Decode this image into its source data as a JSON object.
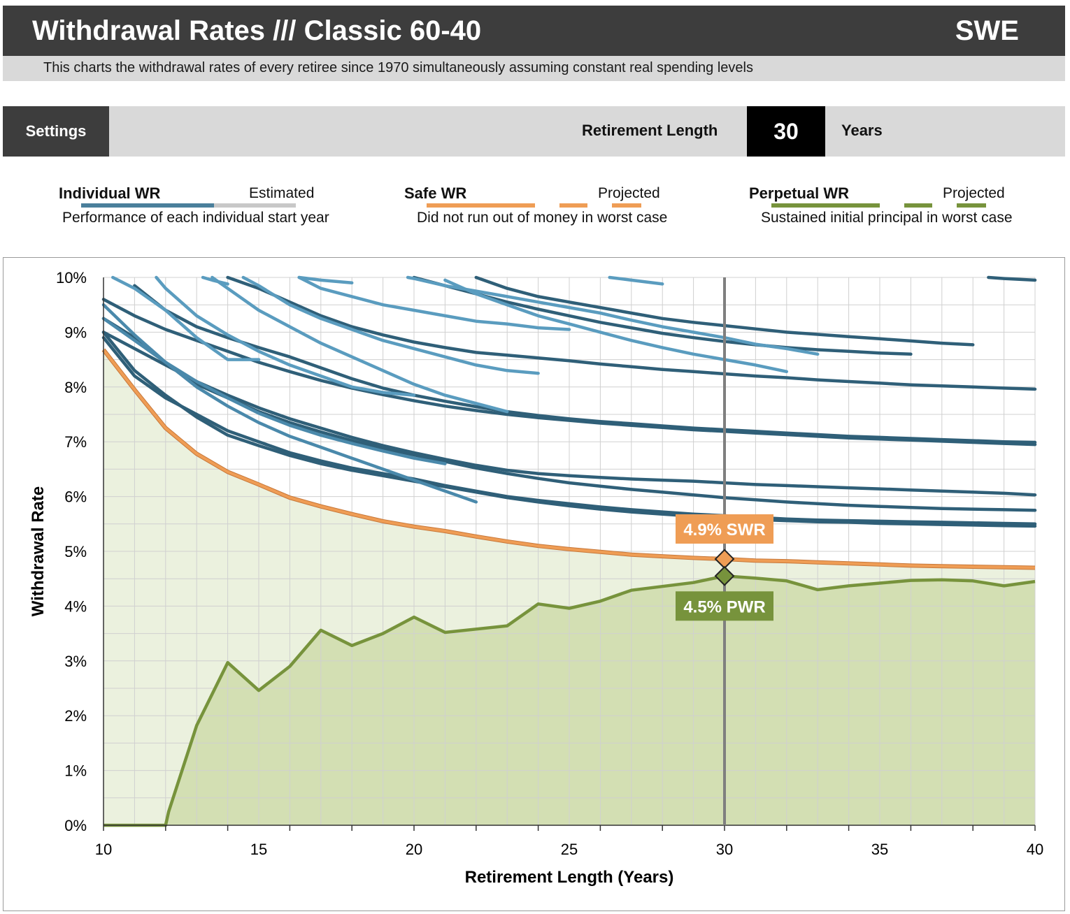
{
  "header": {
    "title": "Withdrawal Rates /// Classic 60-40",
    "country": "SWE",
    "subtitle": "This charts the withdrawal rates of every retiree since 1970 simultaneously assuming constant real spending levels"
  },
  "settings": {
    "button_label": "Settings",
    "retirement_length_label": "Retirement Length",
    "retirement_length_value": "30",
    "retirement_length_unit": "Years"
  },
  "legend": {
    "individual": {
      "title": "Individual WR",
      "extra": "Estimated",
      "desc": "Performance of each individual start year",
      "color": "#4a7f9b",
      "extra_color": "#c8c8c8"
    },
    "safe": {
      "title": "Safe WR",
      "extra": "Projected",
      "desc": "Did not run out of money in worst case",
      "color": "#ef9d55"
    },
    "perpetual": {
      "title": "Perpetual WR",
      "extra": "Projected",
      "desc": "Sustained initial principal in worst case",
      "color": "#77933c"
    }
  },
  "chart_data": {
    "type": "line",
    "xlabel": "Retirement Length (Years)",
    "ylabel": "Withdrawal Rate",
    "xlim": [
      10,
      40
    ],
    "ylim": [
      0,
      10
    ],
    "x_ticks": [
      10,
      15,
      20,
      25,
      30,
      35,
      40
    ],
    "y_ticks": [
      "0%",
      "1%",
      "2%",
      "3%",
      "4%",
      "5%",
      "6%",
      "7%",
      "8%",
      "9%",
      "10%"
    ],
    "selected_x": 30,
    "annotations": [
      {
        "label": "4.9% SWR",
        "x": 30,
        "y": 4.86,
        "color": "#ef9d55"
      },
      {
        "label": "4.5% PWR",
        "x": 30,
        "y": 4.55,
        "color": "#77933c"
      }
    ],
    "safe_wr": {
      "color": "#ef9d55",
      "x": [
        10,
        11,
        12,
        13,
        14,
        15,
        16,
        17,
        18,
        19,
        20,
        21,
        22,
        23,
        24,
        25,
        26,
        27,
        28,
        29,
        30,
        31,
        32,
        33,
        34,
        35,
        36,
        37,
        38,
        39,
        40
      ],
      "y": [
        8.68,
        7.95,
        7.25,
        6.78,
        6.45,
        6.22,
        5.98,
        5.82,
        5.68,
        5.55,
        5.45,
        5.37,
        5.27,
        5.18,
        5.1,
        5.04,
        4.99,
        4.94,
        4.91,
        4.88,
        4.86,
        4.83,
        4.82,
        4.8,
        4.78,
        4.76,
        4.74,
        4.73,
        4.72,
        4.71,
        4.7
      ]
    },
    "perpetual_wr": {
      "color": "#77933c",
      "x": [
        10,
        11,
        12,
        12.1,
        13,
        14,
        15,
        16,
        17,
        18,
        19,
        20,
        21,
        22,
        23,
        24,
        25,
        26,
        27,
        28,
        29,
        30,
        31,
        32,
        33,
        34,
        35,
        36,
        37,
        38,
        39,
        40
      ],
      "y": [
        0,
        0,
        0,
        0.25,
        1.82,
        2.97,
        2.46,
        2.9,
        3.56,
        3.28,
        3.5,
        3.8,
        3.52,
        3.58,
        3.64,
        4.04,
        3.96,
        4.09,
        4.29,
        4.36,
        4.43,
        4.55,
        4.51,
        4.46,
        4.3,
        4.37,
        4.42,
        4.47,
        4.48,
        4.46,
        4.37,
        4.45
      ]
    },
    "individual_series": [
      {
        "color": "#2f5f78",
        "x": [
          10,
          11,
          12,
          13,
          14,
          15,
          16,
          17,
          18,
          19,
          20,
          21,
          22,
          23,
          24,
          25,
          26,
          27,
          28,
          29,
          30,
          31,
          32,
          33,
          34,
          35,
          36,
          37,
          38,
          39,
          40
        ],
        "y": [
          9.0,
          8.3,
          7.85,
          7.45,
          7.12,
          6.93,
          6.75,
          6.6,
          6.48,
          6.38,
          6.28,
          6.18,
          6.08,
          5.98,
          5.9,
          5.83,
          5.77,
          5.72,
          5.68,
          5.64,
          5.6,
          5.58,
          5.56,
          5.54,
          5.53,
          5.51,
          5.5,
          5.49,
          5.48,
          5.47,
          5.46
        ]
      },
      {
        "color": "#2f5f78",
        "x": [
          10,
          11,
          12,
          13,
          14,
          15,
          16,
          17,
          18,
          19,
          20,
          21,
          22,
          23,
          24,
          25,
          26,
          27,
          28,
          29,
          30,
          31,
          32,
          33,
          34,
          35,
          36,
          37,
          38,
          39,
          40
        ],
        "y": [
          8.9,
          8.2,
          7.8,
          7.5,
          7.2,
          7.0,
          6.8,
          6.65,
          6.52,
          6.42,
          6.32,
          6.2,
          6.1,
          6.0,
          5.93,
          5.87,
          5.81,
          5.76,
          5.72,
          5.68,
          5.65,
          5.62,
          5.59,
          5.57,
          5.56,
          5.55,
          5.54,
          5.53,
          5.52,
          5.51,
          5.5
        ]
      },
      {
        "color": "#2f5f78",
        "x": [
          10,
          11,
          12,
          13,
          14,
          15,
          16,
          17,
          18,
          19,
          20,
          21,
          22,
          23,
          24,
          25,
          26,
          27,
          28,
          29,
          30,
          31,
          32,
          33,
          34,
          35,
          36,
          37,
          38,
          39,
          40
        ],
        "y": [
          9.25,
          8.9,
          8.45,
          8.05,
          7.8,
          7.55,
          7.35,
          7.18,
          7.02,
          6.88,
          6.76,
          6.64,
          6.52,
          6.42,
          6.33,
          6.25,
          6.19,
          6.13,
          6.08,
          6.03,
          5.98,
          5.94,
          5.9,
          5.87,
          5.84,
          5.82,
          5.8,
          5.78,
          5.77,
          5.76,
          5.75
        ]
      },
      {
        "color": "#2f5f78",
        "x": [
          10,
          11,
          12,
          13,
          14,
          15,
          16,
          17,
          18,
          19,
          20,
          21,
          22,
          23,
          24,
          25,
          26,
          27,
          28,
          29,
          30,
          31,
          32,
          33,
          34,
          35,
          36,
          37,
          38,
          39,
          40
        ],
        "y": [
          9.0,
          8.7,
          8.4,
          8.1,
          7.85,
          7.62,
          7.42,
          7.25,
          7.08,
          6.93,
          6.8,
          6.68,
          6.57,
          6.48,
          6.42,
          6.38,
          6.35,
          6.32,
          6.3,
          6.28,
          6.25,
          6.22,
          6.2,
          6.18,
          6.16,
          6.14,
          6.12,
          6.1,
          6.08,
          6.06,
          6.03
        ]
      },
      {
        "color": "#2f5f78",
        "x": [
          10,
          11,
          12,
          13,
          14,
          15,
          16,
          17,
          18,
          19,
          20,
          21,
          22,
          23,
          24,
          25,
          26,
          27,
          28,
          29,
          30,
          31,
          32,
          33,
          34,
          35,
          36,
          37,
          38,
          39,
          40
        ],
        "y": [
          9.6,
          9.3,
          9.05,
          8.85,
          8.65,
          8.45,
          8.28,
          8.12,
          7.98,
          7.86,
          7.75,
          7.65,
          7.57,
          7.5,
          7.44,
          7.39,
          7.34,
          7.3,
          7.26,
          7.22,
          7.19,
          7.16,
          7.13,
          7.1,
          7.07,
          7.05,
          7.03,
          7.01,
          6.99,
          6.97,
          6.95
        ]
      },
      {
        "color": "#2f5f78",
        "x": [
          11,
          12,
          13,
          14,
          15,
          16,
          17,
          18,
          19,
          20,
          21,
          22,
          23,
          24,
          25,
          26,
          27,
          28,
          29,
          30,
          31,
          32,
          33,
          34,
          35,
          36,
          37,
          38,
          39,
          40
        ],
        "y": [
          9.85,
          9.4,
          9.1,
          8.9,
          8.72,
          8.55,
          8.35,
          8.15,
          7.98,
          7.85,
          7.74,
          7.64,
          7.55,
          7.48,
          7.42,
          7.37,
          7.33,
          7.29,
          7.25,
          7.22,
          7.19,
          7.16,
          7.13,
          7.1,
          7.08,
          7.06,
          7.04,
          7.02,
          7.0,
          6.99
        ]
      },
      {
        "color": "#2f5f78",
        "x": [
          14,
          15,
          16,
          17,
          18,
          19,
          20,
          21,
          22,
          23,
          24,
          25,
          26,
          27,
          28,
          29,
          30,
          31,
          32,
          33,
          34,
          35,
          36,
          37,
          38,
          39,
          40
        ],
        "y": [
          10.0,
          9.8,
          9.55,
          9.3,
          9.1,
          8.95,
          8.82,
          8.72,
          8.63,
          8.58,
          8.53,
          8.48,
          8.42,
          8.37,
          8.32,
          8.28,
          8.24,
          8.2,
          8.17,
          8.13,
          8.1,
          8.07,
          8.04,
          8.02,
          8.0,
          7.98,
          7.96
        ]
      },
      {
        "color": "#2f5f78",
        "x": [
          22,
          23,
          24,
          25,
          26,
          27,
          28,
          29,
          30,
          31,
          32,
          33,
          34,
          35,
          36,
          37,
          38
        ],
        "y": [
          10.0,
          9.8,
          9.65,
          9.55,
          9.45,
          9.35,
          9.25,
          9.18,
          9.12,
          9.06,
          9.0,
          8.96,
          8.92,
          8.88,
          8.84,
          8.8,
          8.77
        ]
      },
      {
        "color": "#2f5f78",
        "x": [
          20,
          21,
          22,
          23,
          24,
          25,
          26,
          27,
          28,
          29,
          30,
          31,
          32,
          33,
          34,
          35,
          36
        ],
        "y": [
          10.0,
          9.85,
          9.7,
          9.55,
          9.42,
          9.3,
          9.18,
          9.08,
          8.98,
          8.9,
          8.83,
          8.77,
          8.72,
          8.68,
          8.65,
          8.62,
          8.6
        ]
      },
      {
        "color": "#2f5f78",
        "x": [
          38.5,
          39,
          40
        ],
        "y": [
          10.0,
          9.98,
          9.95
        ]
      },
      {
        "color": "#4a89ab",
        "x": [
          10,
          11,
          12,
          13,
          14,
          15,
          16,
          17,
          18,
          19,
          20,
          21,
          22
        ],
        "y": [
          9.5,
          8.95,
          8.45,
          8.0,
          7.65,
          7.35,
          7.1,
          6.9,
          6.7,
          6.5,
          6.3,
          6.1,
          5.9
        ]
      },
      {
        "color": "#4a89ab",
        "x": [
          10,
          11,
          12,
          13,
          14,
          15,
          16,
          17,
          18,
          19,
          20,
          21
        ],
        "y": [
          9.25,
          8.85,
          8.45,
          8.1,
          7.8,
          7.52,
          7.3,
          7.12,
          6.97,
          6.83,
          6.7,
          6.6
        ]
      },
      {
        "color": "#5a9cbf",
        "x": [
          10.3,
          11,
          12,
          13,
          14,
          15
        ],
        "y": [
          10.0,
          9.8,
          9.4,
          8.9,
          8.5,
          8.5
        ]
      },
      {
        "color": "#5a9cbf",
        "x": [
          11.7,
          12,
          13,
          14,
          15,
          16,
          17,
          18,
          19,
          20
        ],
        "y": [
          10.0,
          9.8,
          9.3,
          8.95,
          8.65,
          8.4,
          8.2,
          8.0,
          7.9,
          7.85
        ]
      },
      {
        "color": "#5a9cbf",
        "x": [
          13.5,
          14,
          15,
          16,
          17,
          18,
          19,
          20,
          21,
          22,
          23
        ],
        "y": [
          10.0,
          9.8,
          9.4,
          9.1,
          8.8,
          8.55,
          8.3,
          8.05,
          7.85,
          7.7,
          7.55
        ]
      },
      {
        "color": "#5a9cbf",
        "x": [
          14.5,
          15,
          16,
          17,
          18,
          19,
          20,
          21,
          22,
          23,
          24
        ],
        "y": [
          10.0,
          9.85,
          9.5,
          9.25,
          9.05,
          8.85,
          8.7,
          8.55,
          8.4,
          8.3,
          8.25
        ]
      },
      {
        "color": "#5a9cbf",
        "x": [
          16.3,
          17,
          18,
          19,
          20,
          21,
          22,
          23,
          24,
          25
        ],
        "y": [
          10.0,
          9.8,
          9.65,
          9.5,
          9.4,
          9.3,
          9.2,
          9.15,
          9.08,
          9.05
        ]
      },
      {
        "color": "#5a9cbf",
        "x": [
          19.8,
          20,
          21,
          22,
          23,
          24,
          25,
          26,
          27,
          28,
          29,
          30,
          31,
          32,
          33
        ],
        "y": [
          10.0,
          9.98,
          9.85,
          9.75,
          9.65,
          9.55,
          9.45,
          9.35,
          9.22,
          9.1,
          9.0,
          8.9,
          8.78,
          8.7,
          8.6
        ]
      },
      {
        "color": "#5a9cbf",
        "x": [
          21,
          22,
          23,
          24,
          25,
          26,
          27,
          28,
          29,
          30,
          31,
          32
        ],
        "y": [
          9.95,
          9.7,
          9.5,
          9.3,
          9.15,
          9.0,
          8.85,
          8.72,
          8.6,
          8.5,
          8.4,
          8.28
        ]
      },
      {
        "color": "#5a9cbf",
        "x": [
          16.3,
          17,
          18
        ],
        "y": [
          10.0,
          9.95,
          9.9
        ]
      },
      {
        "color": "#5a9cbf",
        "x": [
          26.3,
          27,
          28
        ],
        "y": [
          10.0,
          9.95,
          9.88
        ]
      },
      {
        "color": "#5a9cbf",
        "x": [
          13.2,
          13.5,
          14
        ],
        "y": [
          10.0,
          9.95,
          9.88
        ]
      }
    ]
  }
}
